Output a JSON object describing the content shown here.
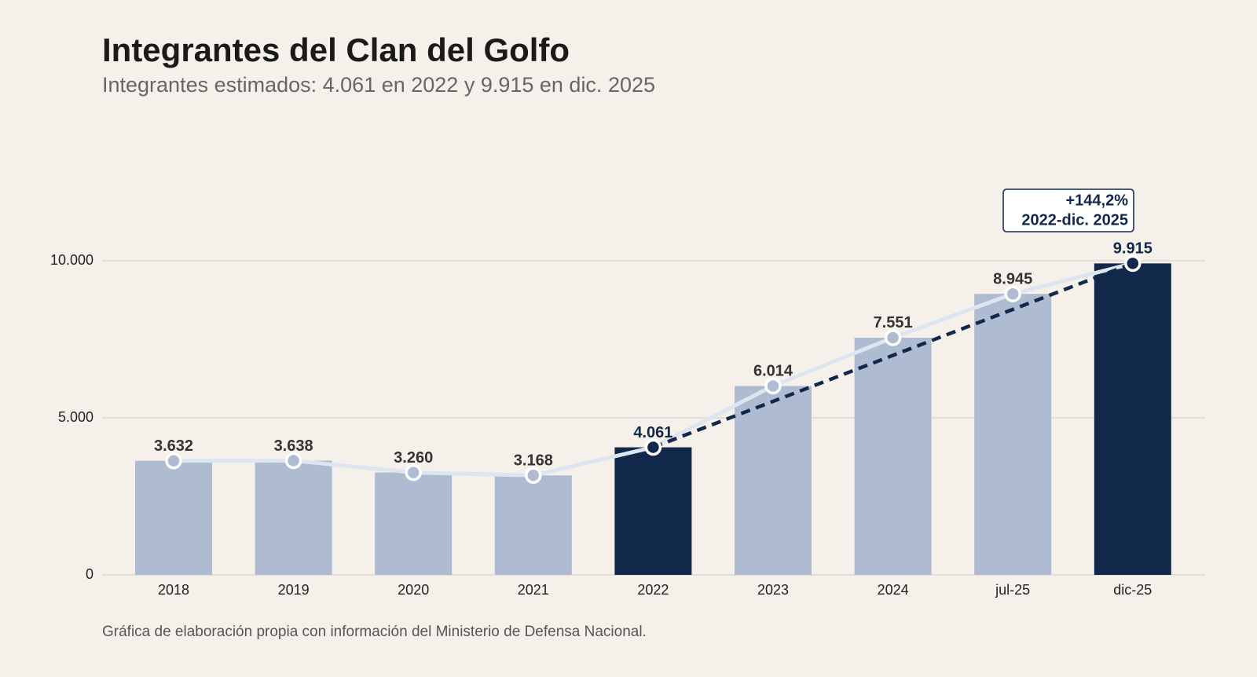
{
  "chart_data": {
    "type": "bar",
    "title": "Integrantes del Clan del Golfo",
    "subtitle": "Integrantes estimados: 4.061 en 2022 y 9.915 en dic. 2025",
    "source": "Gráfica de elaboración propia con información del Ministerio de Defensa Nacional.",
    "categories": [
      "2018",
      "2019",
      "2020",
      "2021",
      "2022",
      "2023",
      "2024",
      "jul-25",
      "dic-25"
    ],
    "values": [
      3632,
      3638,
      3260,
      3168,
      4061,
      6014,
      7551,
      8945,
      9915
    ],
    "value_labels": [
      "3.632",
      "3.638",
      "3.260",
      "3.168",
      "4.061",
      "6.014",
      "7.551",
      "8.945",
      "9.915"
    ],
    "colors": [
      "#aebbd1",
      "#aebbd1",
      "#aebbd1",
      "#aebbd1",
      "#12284a",
      "#aebbd1",
      "#aebbd1",
      "#aebbd1",
      "#12284a"
    ],
    "line_overlay": true,
    "line_color": "#dde5f0",
    "trend": {
      "from": 4,
      "to": 8,
      "color": "#12284a",
      "labels": [
        "+144,2%",
        "2022-dic. 2025"
      ]
    },
    "ylim": [
      0,
      10000
    ],
    "yticks": [
      0,
      {
        "value": 5000,
        "label": "5.000"
      },
      {
        "value": 10000,
        "label": "10.000"
      }
    ],
    "grid": true
  }
}
